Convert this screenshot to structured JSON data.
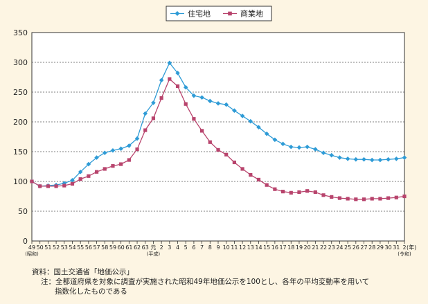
{
  "chart_data": {
    "type": "line",
    "title": "",
    "xlabel": "",
    "ylabel": "",
    "ylim": [
      0,
      350
    ],
    "yticks": [
      0,
      50,
      100,
      150,
      200,
      250,
      300,
      350
    ],
    "grid": true,
    "legend_position": "top-center",
    "categories": [
      "49",
      "50",
      "51",
      "52",
      "53",
      "54",
      "55",
      "56",
      "57",
      "58",
      "59",
      "60",
      "61",
      "62",
      "63",
      "元",
      "2",
      "3",
      "4",
      "5",
      "6",
      "7",
      "8",
      "9",
      "10",
      "11",
      "12",
      "13",
      "14",
      "15",
      "16",
      "17",
      "18",
      "19",
      "20",
      "21",
      "22",
      "23",
      "24",
      "25",
      "26",
      "27",
      "28",
      "29",
      "30",
      "31",
      "2"
    ],
    "category_sublabels": [
      {
        "index": 0,
        "text": "(昭和)"
      },
      {
        "index": 15,
        "text": "(平成)"
      },
      {
        "index": 46,
        "text": "(令和)"
      }
    ],
    "year_unit_label": "(年)",
    "series": [
      {
        "name": "住宅地",
        "color": "#2e9bd6",
        "marker": "diamond",
        "values": [
          100,
          92,
          93,
          94,
          97,
          102,
          116,
          129,
          140,
          148,
          152,
          155,
          160,
          172,
          214,
          232,
          270,
          299,
          282,
          258,
          244,
          241,
          235,
          231,
          229,
          219,
          210,
          201,
          191,
          180,
          170,
          163,
          158,
          157,
          158,
          154,
          148,
          144,
          140,
          138,
          137,
          137,
          136,
          136,
          137,
          138,
          140
        ]
      },
      {
        "name": "商業地",
        "color": "#b8446d",
        "marker": "square",
        "values": [
          100,
          92,
          92,
          92,
          93,
          96,
          104,
          109,
          116,
          121,
          126,
          129,
          136,
          154,
          186,
          206,
          240,
          272,
          260,
          230,
          205,
          185,
          166,
          153,
          145,
          132,
          121,
          111,
          103,
          94,
          87,
          83,
          81,
          82,
          84,
          82,
          77,
          74,
          72,
          71,
          70,
          70,
          71,
          71,
          72,
          73,
          75
        ]
      }
    ]
  },
  "footnotes": {
    "source": "資料：国土交通省「地価公示」",
    "note_line1": "注：全都道府県を対象に調査が実施された昭和49年地価公示を100とし、各年の平均変動率を用いて",
    "note_line2": "指数化したものである"
  }
}
